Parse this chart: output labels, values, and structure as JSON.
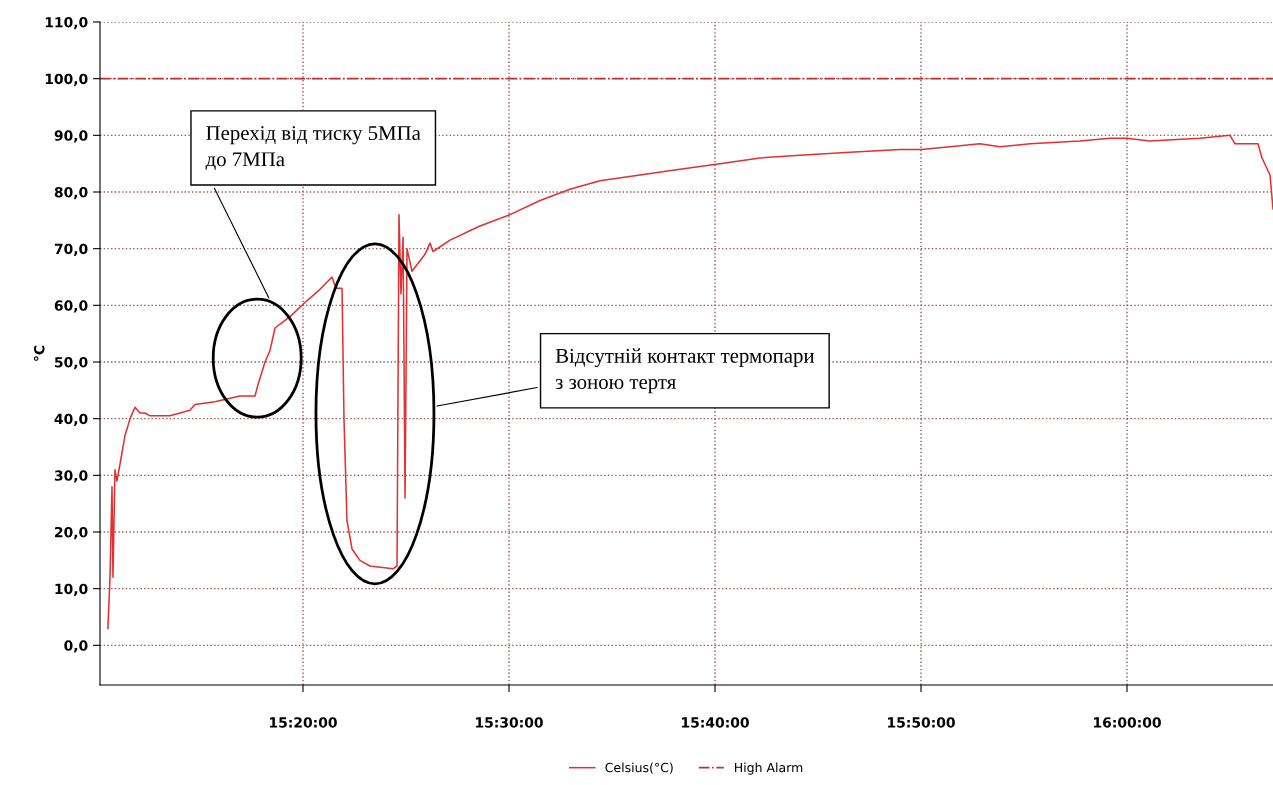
{
  "chart_data": {
    "type": "line",
    "ylabel": "°C",
    "x": [
      15.1755,
      15.1772,
      15.1788,
      15.1796,
      15.1812,
      15.1828,
      15.1853,
      15.1893,
      15.1934,
      15.1974,
      15.2015,
      15.2055,
      15.2096,
      15.2257,
      15.2419,
      15.2459,
      15.2621,
      15.2823,
      15.2945,
      15.2969,
      15.3026,
      15.3066,
      15.3107,
      15.3228,
      15.3349,
      15.3455,
      15.3568,
      15.36,
      15.3649,
      15.3665,
      15.3689,
      15.373,
      15.3794,
      15.3875,
      15.4061,
      15.4094,
      15.411,
      15.4126,
      15.4143,
      15.4159,
      15.4175,
      15.4215,
      15.432,
      15.4361,
      15.4385,
      15.4523,
      15.4765,
      15.5008,
      15.5251,
      15.5493,
      15.5736,
      15.606,
      15.6383,
      15.6707,
      15.703,
      15.7354,
      15.7758,
      15.8163,
      15.8333,
      15.8568,
      15.881,
      15.8972,
      15.9215,
      15.9619,
      15.9862,
      16.0,
      16.0186,
      16.0591,
      16.0833,
      16.0874,
      16.106,
      16.1092,
      16.1157,
      16.1181
    ],
    "series": [
      {
        "name": "Celsius(°C)",
        "color": "#e03030",
        "values": [
          3,
          12,
          28,
          12,
          31,
          29,
          32,
          37,
          40,
          42,
          41,
          41,
          40.5,
          40.5,
          41.5,
          42.5,
          43,
          44,
          44,
          46,
          50,
          52,
          56,
          58,
          60.5,
          62.5,
          65,
          63,
          63,
          40,
          22,
          17,
          15,
          14,
          13.5,
          14,
          76,
          62,
          72,
          26,
          70,
          66,
          69,
          71,
          69.5,
          71.5,
          74,
          76,
          78.5,
          80.5,
          82,
          83,
          84,
          85,
          86,
          86.5,
          87,
          87.5,
          87.5,
          88,
          88.5,
          88,
          88.5,
          89,
          89.5,
          89.5,
          89,
          89.5,
          90,
          88.5,
          88.5,
          86,
          83,
          77
        ]
      }
    ],
    "ref_lines": [
      {
        "axis": "y",
        "value": 100,
        "label": "High Alarm",
        "color": "#c03030",
        "line_style": "dashdot"
      }
    ],
    "xlim": [
      15.1691,
      16.1181
    ],
    "xticks": [
      {
        "value": 15.333333,
        "label": "15:20:00"
      },
      {
        "value": 15.5,
        "label": "15:30:00"
      },
      {
        "value": 15.666667,
        "label": "15:40:00"
      },
      {
        "value": 15.833333,
        "label": "15:50:00"
      },
      {
        "value": 16.0,
        "label": "16:00:00"
      }
    ],
    "ylim": [
      -7,
      110
    ],
    "yticks": [
      {
        "value": 0,
        "label": "0,0"
      },
      {
        "value": 10,
        "label": "10,0"
      },
      {
        "value": 20,
        "label": "20,0"
      },
      {
        "value": 30,
        "label": "30,0"
      },
      {
        "value": 40,
        "label": "40,0"
      },
      {
        "value": 50,
        "label": "50,0"
      },
      {
        "value": 60,
        "label": "60,0"
      },
      {
        "value": 70,
        "label": "70,0"
      },
      {
        "value": 80,
        "label": "80,0"
      },
      {
        "value": 90,
        "label": "90,0"
      },
      {
        "value": 100,
        "label": "100,0"
      },
      {
        "value": 110,
        "label": "110,0"
      }
    ],
    "grid": true,
    "legend": "bottom",
    "line_style": "solid",
    "marker": "none",
    "annotations": [
      "Перехід від тиску 5МПа\nдо 7МПа",
      "Відсутній контакт термопари\nз зоною тертя"
    ]
  }
}
